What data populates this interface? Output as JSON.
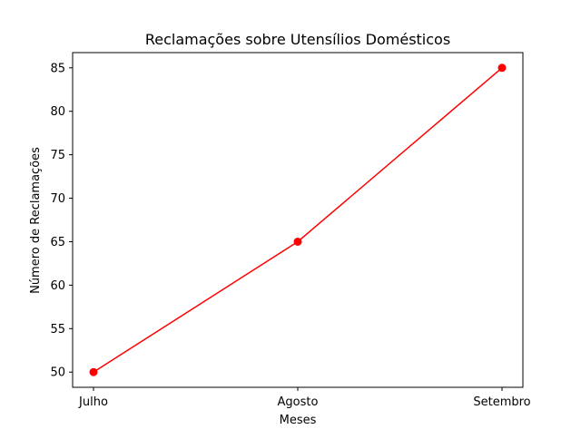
{
  "chart_data": {
    "type": "line",
    "title": "Reclamações sobre Utensílios Domésticos",
    "xlabel": "Meses",
    "ylabel": "Número de Reclamações",
    "categories": [
      "Julho",
      "Agosto",
      "Setembro"
    ],
    "series": [
      {
        "values": [
          50,
          65,
          85
        ],
        "color": "#ff0000",
        "marker": "circle"
      }
    ],
    "yticks": [
      50,
      55,
      60,
      65,
      70,
      75,
      80,
      85
    ],
    "ylim": [
      48.25,
      86.75
    ],
    "grid": false,
    "legend": "none"
  }
}
